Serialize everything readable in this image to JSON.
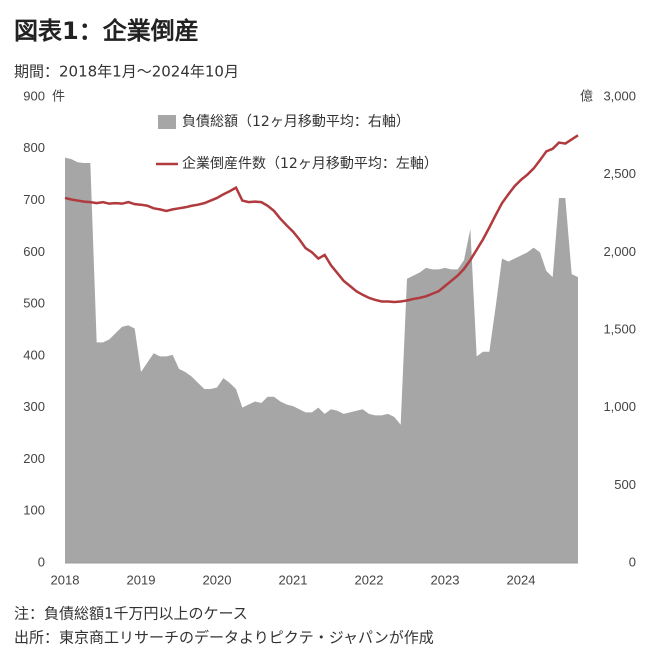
{
  "chart_data": {
    "type": "area_line",
    "title": "図表1：企業倒産",
    "subtitle": "期間：2018年1月～2024年10月",
    "y_unit": "件",
    "y2_unit": "億",
    "notes": [
      "注：負債総額1千万円以上のケース",
      "出所：東京商工リサーチのデータよりピクテ・ジャパンが作成"
    ],
    "categories": [
      "2018",
      null,
      null,
      null,
      null,
      null,
      null,
      null,
      null,
      null,
      null,
      null,
      "2019",
      null,
      null,
      null,
      null,
      null,
      null,
      null,
      null,
      null,
      null,
      null,
      "2020",
      null,
      null,
      null,
      null,
      null,
      null,
      null,
      null,
      null,
      null,
      null,
      "2021",
      null,
      null,
      null,
      null,
      null,
      null,
      null,
      null,
      null,
      null,
      null,
      "2022",
      null,
      null,
      null,
      null,
      null,
      null,
      null,
      null,
      null,
      null,
      null,
      "2023",
      null,
      null,
      null,
      null,
      null,
      null,
      null,
      null,
      null,
      null,
      null,
      "2024",
      null,
      null,
      null,
      null,
      null,
      null,
      null,
      null,
      null
    ],
    "series": [
      {
        "name": "負債総額（12ヶ月移動平均：右軸）",
        "type": "area",
        "axis": "y2",
        "color": "#a6a6a6",
        "values": [
          2610,
          2600,
          2580,
          2575,
          2575,
          1420,
          1420,
          1440,
          1480,
          1520,
          1530,
          1510,
          1230,
          1290,
          1350,
          1330,
          1330,
          1340,
          1250,
          1230,
          1200,
          1160,
          1120,
          1120,
          1130,
          1190,
          1160,
          1120,
          1000,
          1020,
          1040,
          1030,
          1070,
          1070,
          1040,
          1020,
          1010,
          990,
          970,
          970,
          1000,
          960,
          990,
          980,
          960,
          970,
          980,
          990,
          960,
          950,
          950,
          960,
          940,
          890,
          1830,
          1850,
          1870,
          1900,
          1890,
          1890,
          1900,
          1890,
          1890,
          1950,
          2150,
          1330,
          1360,
          1360,
          1650,
          1960,
          1940,
          1960,
          1980,
          2000,
          2030,
          2000,
          1880,
          1840,
          2350,
          2350,
          1860,
          1840
        ]
      },
      {
        "name": "企業倒産件数（12ヶ月移動平均：左軸）",
        "type": "line",
        "axis": "y",
        "color": "#b03a3e",
        "values": [
          705,
          702,
          700,
          698,
          697,
          695,
          697,
          694,
          695,
          694,
          697,
          693,
          692,
          690,
          685,
          683,
          680,
          683,
          685,
          687,
          690,
          692,
          695,
          700,
          705,
          712,
          718,
          725,
          700,
          697,
          698,
          697,
          690,
          680,
          665,
          652,
          640,
          625,
          608,
          600,
          588,
          595,
          575,
          560,
          545,
          535,
          525,
          518,
          512,
          508,
          505,
          505,
          504,
          505,
          507,
          510,
          512,
          515,
          520,
          525,
          535,
          545,
          555,
          568,
          585,
          605,
          625,
          648,
          672,
          695,
          712,
          728,
          740,
          750,
          762,
          778,
          795,
          800,
          812,
          810,
          818,
          826
        ]
      }
    ],
    "ylim": [
      0,
      900
    ],
    "yticks": [
      0,
      100,
      200,
      300,
      400,
      500,
      600,
      700,
      800,
      900
    ],
    "y2lim": [
      0,
      3000
    ],
    "y2ticks": [
      0,
      500,
      {
        "value": 1000,
        "label": "1,000"
      },
      {
        "value": 1500,
        "label": "1,500"
      },
      {
        "value": 2000,
        "label": "2,000"
      },
      {
        "value": 2500,
        "label": "2,500"
      },
      {
        "value": 3000,
        "label": "3,000"
      }
    ],
    "legend": "top-left"
  }
}
